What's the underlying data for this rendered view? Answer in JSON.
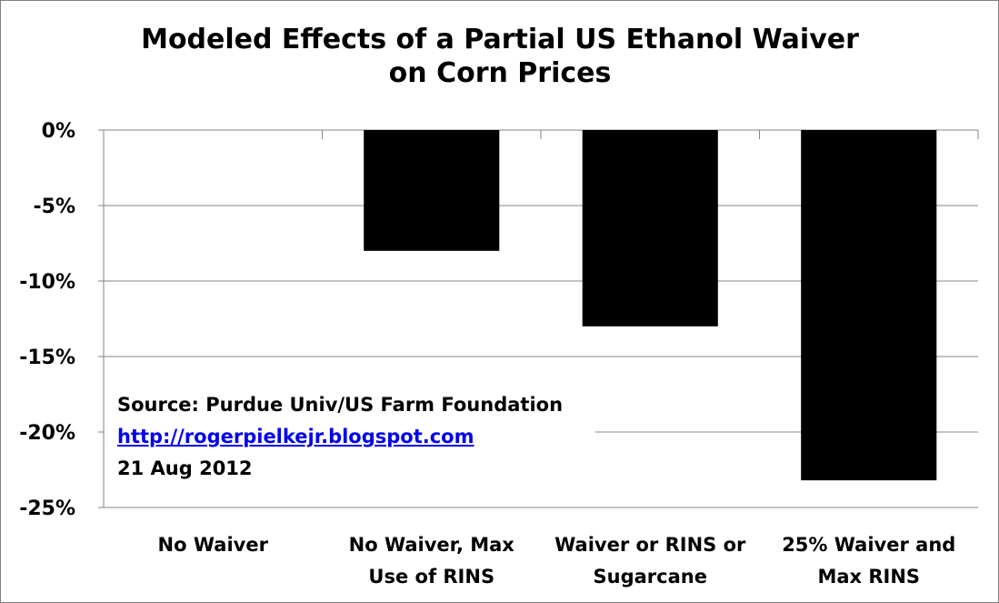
{
  "chart_data": {
    "type": "bar",
    "title": [
      "Modeled Effects of a Partial US Ethanol Waiver",
      "on Corn Prices"
    ],
    "categories": [
      [
        "No Waiver"
      ],
      [
        "No Waiver, Max",
        "Use of RINS"
      ],
      [
        "Waiver or RINS or",
        "Sugarcane"
      ],
      [
        "25% Waiver and",
        "Max RINS"
      ]
    ],
    "values": [
      0,
      -8,
      -13,
      -23.2
    ],
    "ylim": [
      -25,
      0
    ],
    "yticks": [
      0,
      -5,
      -10,
      -15,
      -20,
      -25
    ],
    "ytick_labels": [
      "0%",
      "-5%",
      "-10%",
      "-15%",
      "-20%",
      "-25%"
    ],
    "grid": true,
    "bar_color": "#000000",
    "gridline_color": "#868686"
  },
  "annotation": {
    "source": "Source: Purdue Univ/US Farm Foundation",
    "link": "http://rogerpielkejr.blogspot.com",
    "date": "21 Aug 2012"
  }
}
